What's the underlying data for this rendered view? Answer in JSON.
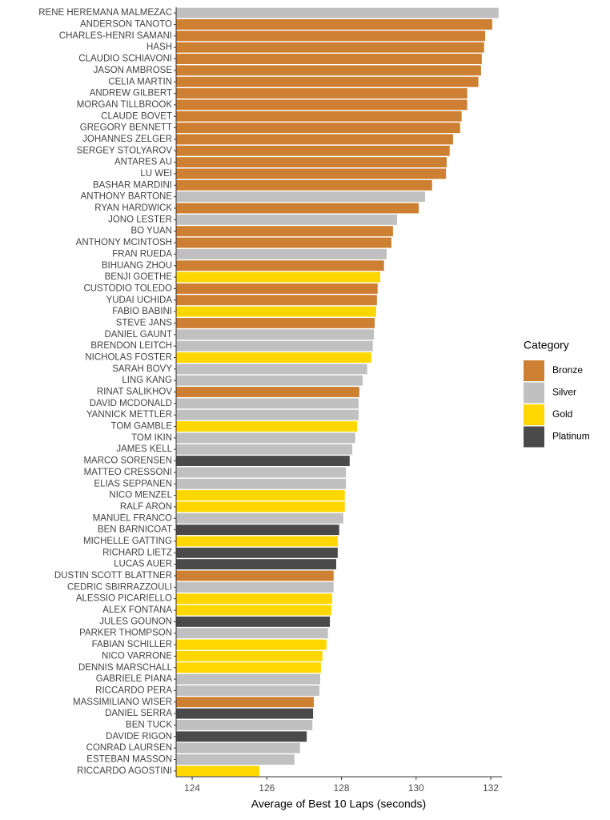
{
  "chart_data": {
    "type": "bar",
    "orientation": "horizontal",
    "x_label": "Average of Best 10 Laps (seconds)",
    "legend_title": "Category",
    "legend": "right",
    "categories": [
      "RENE HEREMANA MALMEZAC",
      "ANDERSON TANOTO",
      "CHARLES-HENRI SAMANI",
      "HASH",
      "CLAUDIO SCHIAVONI",
      "JASON AMBROSE",
      "CELIA MARTIN",
      "ANDREW GILBERT",
      "MORGAN TILLBROOK",
      "CLAUDE BOVET",
      "GREGORY BENNETT",
      "JOHANNES ZELGER",
      "SERGEY STOLYAROV",
      "ANTARES AU",
      "LU WEI",
      "BASHAR MARDINI",
      "ANTHONY BARTONE",
      "RYAN HARDWICK",
      "JONO LESTER",
      "BO YUAN",
      "ANTHONY MCINTOSH",
      "FRAN RUEDA",
      "BIHUANG ZHOU",
      "BENJI GOETHE",
      "CUSTODIO TOLEDO",
      "YUDAI UCHIDA",
      "FABIO BABINI",
      "STEVE JANS",
      "DANIEL GAUNT",
      "BRENDON LEITCH",
      "NICHOLAS FOSTER",
      "SARAH BOVY",
      "LING KANG",
      "RINAT SALIKHOV",
      "DAVID MCDONALD",
      "YANNICK METTLER",
      "TOM GAMBLE",
      "TOM IKIN",
      "JAMES KELL",
      "MARCO SORENSEN",
      "MATTEO CRESSONI",
      "ELIAS SEPPANEN",
      "NICO MENZEL",
      "RALF ARON",
      "MANUEL FRANCO",
      "BEN BARNICOAT",
      "MICHELLE GATTING",
      "RICHARD LIETZ",
      "LUCAS AUER",
      "DUSTIN SCOTT BLATTNER",
      "CEDRIC SBIRRAZZOULI",
      "ALESSIO PICARIELLO",
      "ALEX FONTANA",
      "JULES GOUNON",
      "PARKER THOMPSON",
      "FABIAN SCHILLER",
      "NICO VARRONE",
      "DENNIS MARSCHALL",
      "GABRIELE PIANA",
      "RICCARDO PERA",
      "MASSIMILIANO WISER",
      "DANIEL SERRA",
      "BEN TUCK",
      "DAVIDE RIGON",
      "CONRAD LAURSEN",
      "ESTEBAN MASSON",
      "RICCARDO AGOSTINI"
    ],
    "series": [
      {
        "name": "Bronze",
        "color": "#CD7F32",
        "values": [
          null,
          132.04,
          131.85,
          131.82,
          131.76,
          131.74,
          131.67,
          131.37,
          131.37,
          131.22,
          131.18,
          130.99,
          130.9,
          130.82,
          130.8,
          130.43,
          null,
          130.07,
          null,
          129.38,
          129.34,
          null,
          129.14,
          null,
          128.97,
          128.95,
          null,
          128.89,
          null,
          null,
          null,
          null,
          null,
          128.48,
          null,
          null,
          null,
          null,
          null,
          null,
          null,
          null,
          null,
          null,
          null,
          null,
          null,
          null,
          null,
          127.79,
          null,
          null,
          null,
          null,
          null,
          null,
          null,
          null,
          null,
          null,
          127.26,
          null,
          null,
          null,
          null,
          null,
          null
        ]
      },
      {
        "name": "Silver",
        "color": "#C0C0C0",
        "values": [
          132.21,
          null,
          null,
          null,
          null,
          null,
          null,
          null,
          null,
          null,
          null,
          null,
          null,
          null,
          null,
          null,
          130.24,
          null,
          129.49,
          null,
          null,
          129.21,
          null,
          null,
          null,
          null,
          null,
          null,
          128.87,
          128.84,
          null,
          128.69,
          128.57,
          null,
          128.46,
          128.46,
          null,
          128.37,
          128.29,
          null,
          128.12,
          128.12,
          null,
          null,
          128.05,
          null,
          null,
          null,
          null,
          null,
          127.79,
          null,
          null,
          null,
          127.64,
          null,
          null,
          null,
          127.43,
          127.41,
          null,
          null,
          127.22,
          null,
          126.89,
          126.74,
          null
        ]
      },
      {
        "name": "Gold",
        "color": "#FFD700",
        "values": [
          null,
          null,
          null,
          null,
          null,
          null,
          null,
          null,
          null,
          null,
          null,
          null,
          null,
          null,
          null,
          null,
          null,
          null,
          null,
          null,
          null,
          null,
          null,
          129.04,
          null,
          null,
          128.93,
          null,
          null,
          null,
          128.8,
          null,
          null,
          null,
          null,
          null,
          128.42,
          null,
          null,
          null,
          null,
          null,
          128.09,
          128.09,
          null,
          null,
          127.9,
          null,
          null,
          null,
          null,
          127.75,
          127.73,
          null,
          null,
          127.6,
          127.49,
          127.45,
          null,
          null,
          null,
          null,
          null,
          null,
          null,
          null,
          125.8
        ]
      },
      {
        "name": "Platinum",
        "color": "#4A4A4A",
        "values": [
          null,
          null,
          null,
          null,
          null,
          null,
          null,
          null,
          null,
          null,
          null,
          null,
          null,
          null,
          null,
          null,
          null,
          null,
          null,
          null,
          null,
          null,
          null,
          null,
          null,
          null,
          null,
          null,
          null,
          null,
          null,
          null,
          null,
          null,
          null,
          null,
          null,
          null,
          null,
          128.22,
          null,
          null,
          null,
          null,
          null,
          127.94,
          null,
          127.9,
          127.86,
          null,
          null,
          null,
          null,
          127.69,
          null,
          null,
          null,
          null,
          null,
          null,
          null,
          127.24,
          null,
          127.07,
          null,
          null,
          null
        ]
      }
    ],
    "xlim": [
      123.57,
      132.3
    ],
    "xticks": [
      124,
      126,
      128,
      130,
      132
    ],
    "grid": false
  }
}
